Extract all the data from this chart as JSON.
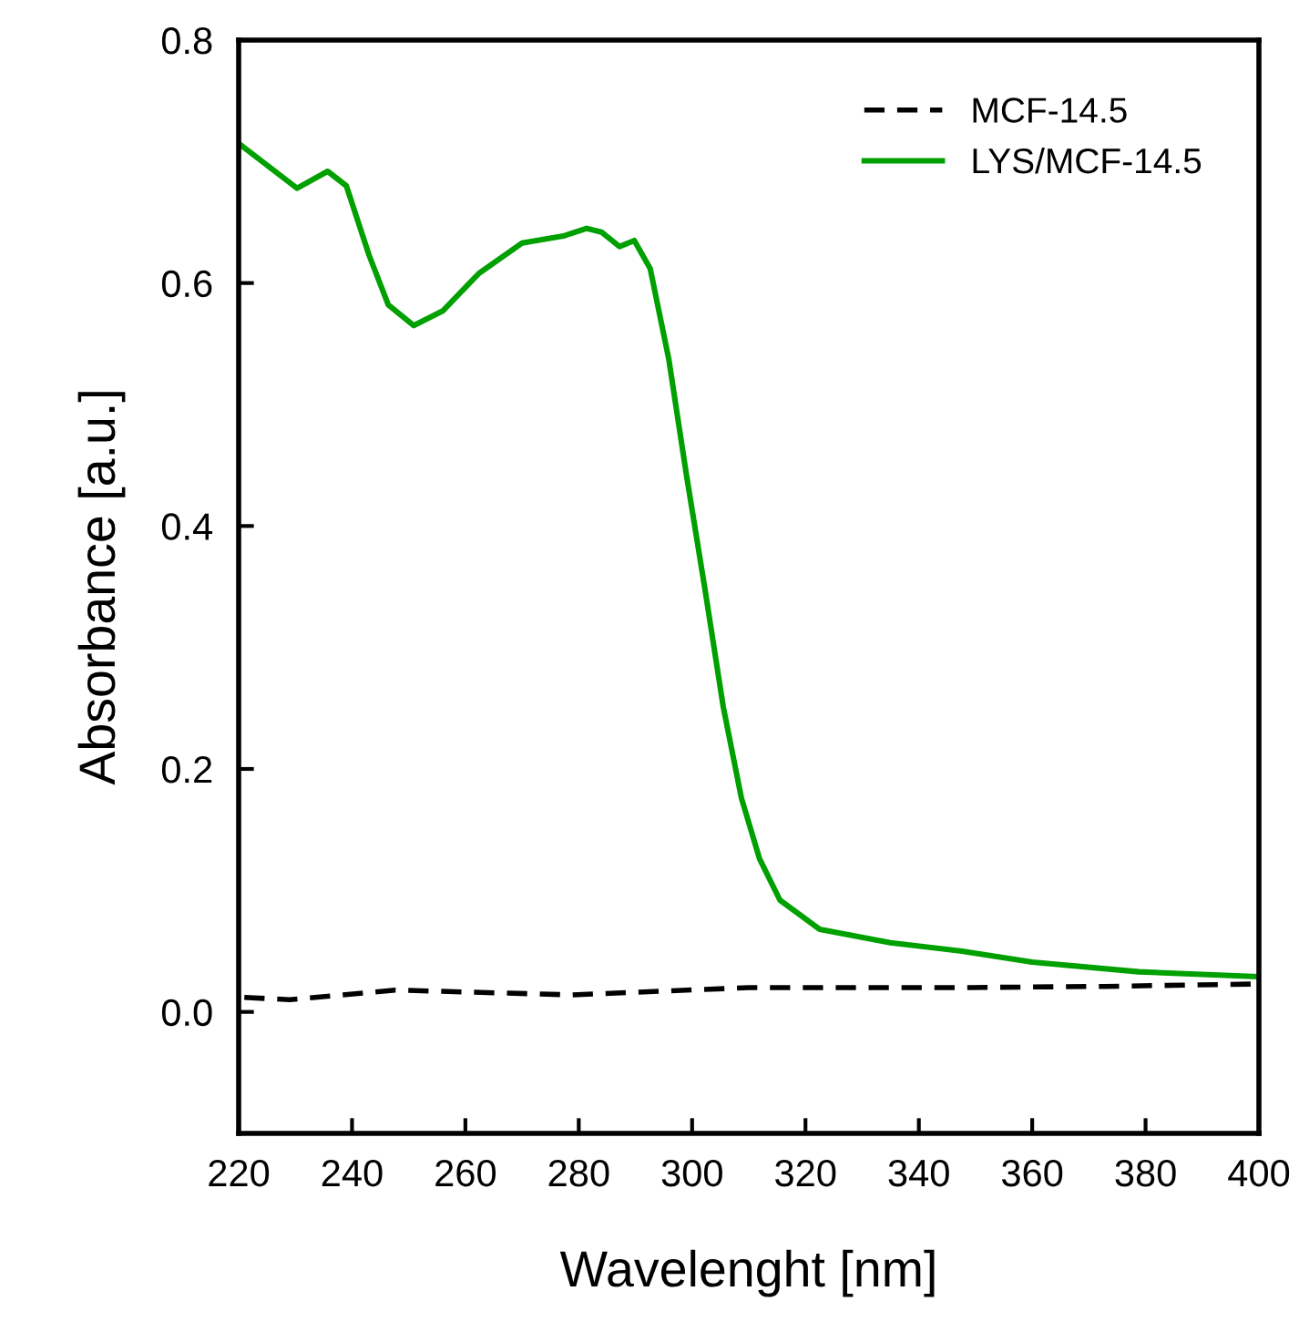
{
  "chart_data": {
    "type": "line",
    "xlabel": "Wavelenght [nm]",
    "ylabel": "Absorbance [a.u.]",
    "xlim": [
      220,
      400
    ],
    "xticks": [
      220,
      240,
      260,
      280,
      300,
      320,
      340,
      360,
      380,
      400
    ],
    "ylim": [
      -0.1,
      0.8
    ],
    "yticks": [
      {
        "value": 0.0,
        "label": "0.0"
      },
      0.2,
      0.4,
      0.6,
      0.8
    ],
    "grid": false,
    "legend": "top right",
    "series": [
      {
        "name": "MCF-14.5",
        "color": "#000000",
        "line_style": "dashed",
        "x": [
          221,
          229,
          247.6,
          278.8,
          310,
          347,
          372.7,
          400
        ],
        "values": [
          0.012,
          0.01,
          0.018,
          0.014,
          0.02,
          0.02,
          0.021,
          0.023
        ]
      },
      {
        "name": "LYS/MCF-14.5",
        "color": "#00a000",
        "line_style": "solid",
        "x": [
          220,
          230.3,
          235.7,
          239,
          243,
          246.4,
          250.9,
          256,
          262.4,
          270,
          277.5,
          281.4,
          284,
          287.2,
          289.8,
          292.6,
          295.9,
          299,
          302.3,
          305.5,
          308.7,
          311.9,
          315.5,
          322.5,
          335,
          347.6,
          360,
          378.8,
          400
        ],
        "values": [
          0.715,
          0.678,
          0.692,
          0.68,
          0.623,
          0.582,
          0.565,
          0.577,
          0.608,
          0.633,
          0.639,
          0.645,
          0.642,
          0.63,
          0.635,
          0.612,
          0.537,
          0.442,
          0.347,
          0.251,
          0.176,
          0.126,
          0.092,
          0.068,
          0.057,
          0.05,
          0.041,
          0.033,
          0.029
        ]
      }
    ]
  }
}
